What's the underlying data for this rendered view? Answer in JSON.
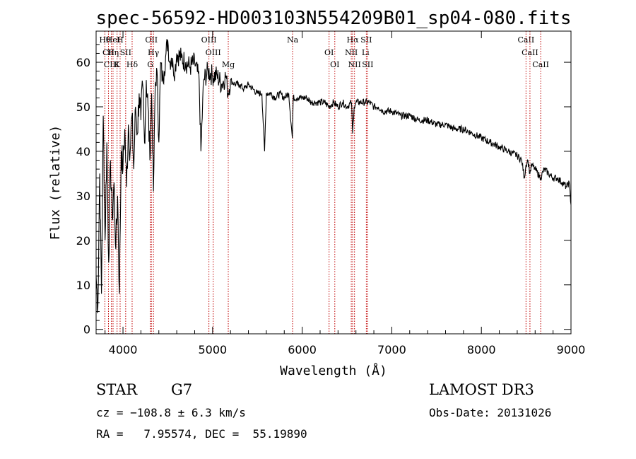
{
  "chart_data": {
    "type": "line",
    "title": "spec-56592-HD003103N554209B01_sp04-080.fits",
    "xlabel": "Wavelength (Å)",
    "ylabel": "Flux (relative)",
    "xlim": [
      3700,
      9000
    ],
    "ylim": [
      -1,
      67
    ],
    "xticks": [
      4000,
      5000,
      6000,
      7000,
      8000,
      9000
    ],
    "yticks": [
      0,
      10,
      20,
      30,
      40,
      50,
      60
    ],
    "series": [
      {
        "name": "flux",
        "x": [
          3700,
          3720,
          3740,
          3760,
          3780,
          3800,
          3820,
          3840,
          3860,
          3880,
          3900,
          3920,
          3940,
          3960,
          3980,
          4000,
          4020,
          4040,
          4060,
          4080,
          4100,
          4120,
          4140,
          4160,
          4180,
          4200,
          4220,
          4240,
          4260,
          4280,
          4300,
          4320,
          4340,
          4360,
          4380,
          4400,
          4420,
          4440,
          4460,
          4480,
          4500,
          4520,
          4540,
          4560,
          4580,
          4600,
          4650,
          4700,
          4750,
          4800,
          4850,
          4870,
          4900,
          4950,
          5000,
          5050,
          5100,
          5150,
          5170,
          5200,
          5250,
          5300,
          5350,
          5400,
          5450,
          5500,
          5550,
          5580,
          5600,
          5650,
          5700,
          5750,
          5800,
          5850,
          5890,
          5900,
          5950,
          6000,
          6050,
          6100,
          6150,
          6200,
          6250,
          6300,
          6350,
          6400,
          6450,
          6500,
          6550,
          6563,
          6580,
          6600,
          6650,
          6700,
          6750,
          6800,
          6850,
          6900,
          6950,
          7000,
          7100,
          7200,
          7300,
          7400,
          7500,
          7600,
          7700,
          7800,
          7900,
          8000,
          8100,
          8200,
          8300,
          8400,
          8450,
          8480,
          8498,
          8520,
          8542,
          8560,
          8600,
          8662,
          8700,
          8750,
          8800,
          8850,
          8900,
          8950,
          8980,
          9000
        ],
        "values": [
          12,
          5,
          35,
          8,
          48,
          20,
          42,
          15,
          38,
          25,
          33,
          18,
          30,
          8,
          40,
          36,
          45,
          32,
          46,
          40,
          48,
          36,
          50,
          44,
          53,
          47,
          55,
          42,
          56,
          50,
          38,
          53,
          31,
          55,
          58,
          42,
          60,
          56,
          58,
          62,
          65,
          60,
          61,
          59,
          58,
          62,
          61,
          60,
          59,
          60,
          56,
          40,
          56,
          58,
          57,
          57,
          55,
          57,
          53,
          56,
          55,
          55,
          54,
          55,
          54,
          53,
          53,
          40,
          53,
          53,
          52,
          53,
          52,
          53,
          43,
          52,
          52,
          52,
          52,
          51,
          51,
          51,
          51,
          50,
          51,
          50,
          51,
          50,
          51,
          44,
          50,
          51,
          51,
          51,
          51,
          50,
          50,
          49,
          49,
          49,
          48,
          48,
          47,
          47,
          46,
          46,
          45,
          45,
          44,
          43,
          42,
          41,
          40,
          39,
          38,
          34,
          37,
          38,
          35,
          37,
          36,
          34,
          36,
          35,
          34,
          34,
          33,
          32,
          33,
          28
        ]
      }
    ],
    "line_markers": [
      {
        "label": "Hθ",
        "x": 3798
      },
      {
        "label": "CII",
        "x": 3838
      },
      {
        "label": "CIII",
        "x": 3870
      },
      {
        "label": "HeI",
        "x": 3889
      },
      {
        "label": "Hη",
        "x": 3889
      },
      {
        "label": "K",
        "x": 3934
      },
      {
        "label": "H",
        "x": 3968
      },
      {
        "label": "SII",
        "x": 4030
      },
      {
        "label": "Hδ",
        "x": 4102
      },
      {
        "label": "OII",
        "x": 4317
      },
      {
        "label": "Hγ",
        "x": 4340
      },
      {
        "label": "G",
        "x": 4305
      },
      {
        "label": "OIII",
        "x": 4959
      },
      {
        "label": "OIII",
        "x": 5007
      },
      {
        "label": "Mg",
        "x": 5175
      },
      {
        "label": "Na",
        "x": 5893
      },
      {
        "label": "OI",
        "x": 6300
      },
      {
        "label": "OI",
        "x": 6364
      },
      {
        "label": "Hα",
        "x": 6563
      },
      {
        "label": "NII",
        "x": 6548
      },
      {
        "label": "NII",
        "x": 6584
      },
      {
        "label": "SII",
        "x": 6716
      },
      {
        "label": "Li",
        "x": 6707
      },
      {
        "label": "SII",
        "x": 6731
      },
      {
        "label": "CaII",
        "x": 8498
      },
      {
        "label": "CaII",
        "x": 8542
      },
      {
        "label": "CaII",
        "x": 8662
      }
    ]
  },
  "info": {
    "object_type": "STAR",
    "spectral_class": "G7",
    "survey": "LAMOST DR3",
    "cz": "cz = −108.8 ± 6.3 km/s",
    "obs_date": "Obs-Date: 20131026",
    "coords": "RA =   7.95574, DEC =  55.19890"
  }
}
